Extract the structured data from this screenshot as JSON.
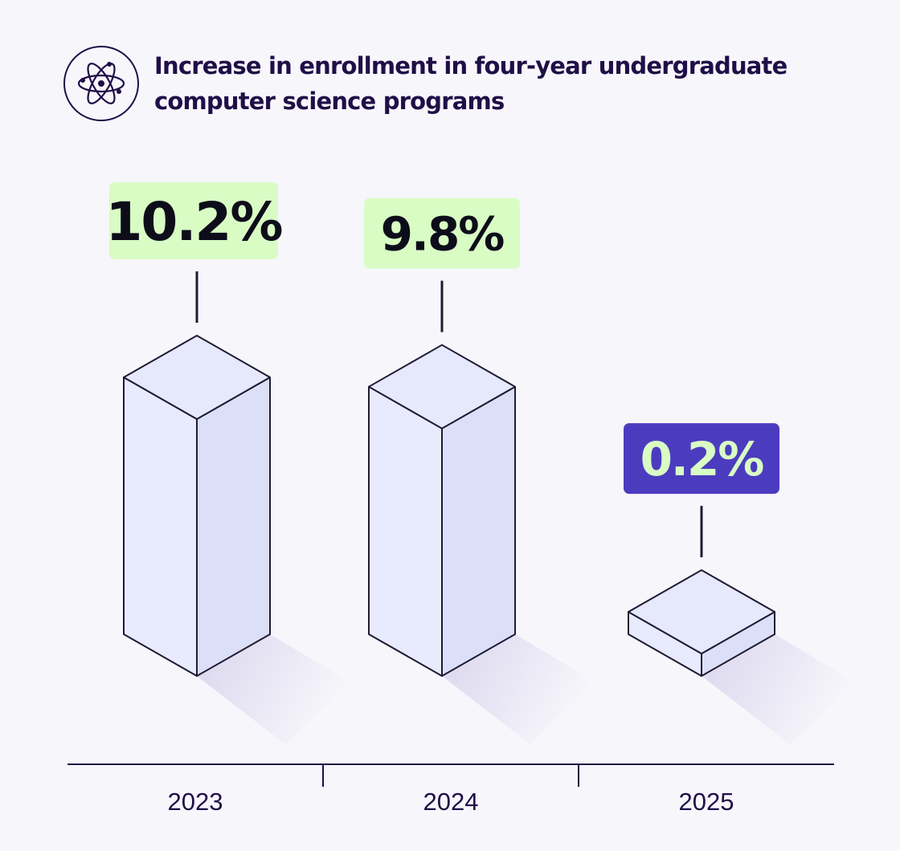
{
  "chart_data": {
    "type": "bar",
    "title": "Increase in enrollment in four-year undergraduate computer science programs",
    "categories": [
      "2023",
      "2024",
      "2025"
    ],
    "values": [
      10.2,
      9.8,
      0.2
    ],
    "value_labels": [
      "10.2%",
      "9.8%",
      "0.2%"
    ],
    "unit": "%",
    "highlight_index": 2,
    "grid": false,
    "legend": "none"
  },
  "header": {
    "icon": "atom-icon"
  },
  "colors": {
    "background": "#f7f6fb",
    "title": "#1f0f47",
    "axis": "#1f0f47",
    "label_bg": "#d9fcc4",
    "label_text": "#0d0d1a",
    "highlight_bg": "#4b3cbf",
    "highlight_text": "#d9fcc4",
    "bar_front": "#e8eafd",
    "bar_side": "#dcdff8",
    "bar_top": "#e6e8fc",
    "bar_stroke": "#1f1a33",
    "shadow": "#d6d2ec"
  }
}
